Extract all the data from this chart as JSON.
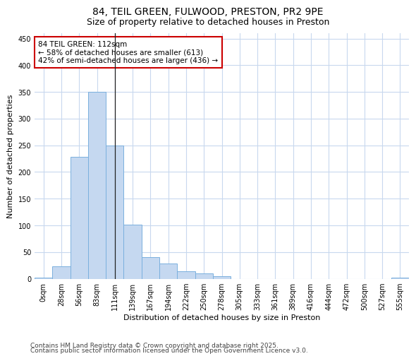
{
  "title_line1": "84, TEIL GREEN, FULWOOD, PRESTON, PR2 9PE",
  "title_line2": "Size of property relative to detached houses in Preston",
  "xlabel": "Distribution of detached houses by size in Preston",
  "ylabel": "Number of detached properties",
  "categories": [
    "0sqm",
    "28sqm",
    "56sqm",
    "83sqm",
    "111sqm",
    "139sqm",
    "167sqm",
    "194sqm",
    "222sqm",
    "250sqm",
    "278sqm",
    "305sqm",
    "333sqm",
    "361sqm",
    "389sqm",
    "416sqm",
    "444sqm",
    "472sqm",
    "500sqm",
    "527sqm",
    "555sqm"
  ],
  "values": [
    2,
    23,
    229,
    350,
    250,
    101,
    40,
    29,
    14,
    10,
    5,
    0,
    0,
    0,
    0,
    0,
    0,
    0,
    0,
    0,
    2
  ],
  "bar_color": "#c5d8f0",
  "bar_edge_color": "#7ab0de",
  "vline_x": 4,
  "annotation_text": "84 TEIL GREEN: 112sqm\n← 58% of detached houses are smaller (613)\n42% of semi-detached houses are larger (436) →",
  "annotation_box_color": "#ffffff",
  "annotation_box_edge_color": "#cc0000",
  "ylim": [
    0,
    460
  ],
  "yticks": [
    0,
    50,
    100,
    150,
    200,
    250,
    300,
    350,
    400,
    450
  ],
  "background_color": "#ffffff",
  "grid_color": "#c8d8ee",
  "footer_line1": "Contains HM Land Registry data © Crown copyright and database right 2025.",
  "footer_line2": "Contains public sector information licensed under the Open Government Licence v3.0.",
  "title_fontsize": 10,
  "subtitle_fontsize": 9,
  "label_fontsize": 8,
  "tick_fontsize": 7,
  "annot_fontsize": 7.5,
  "footer_fontsize": 6.5
}
